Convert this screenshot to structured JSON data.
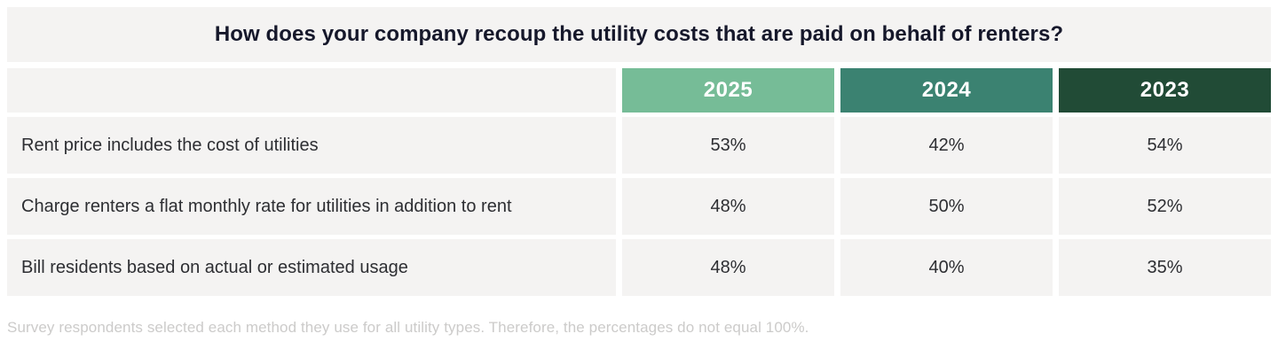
{
  "table": {
    "title": "How does your company recoup the utility costs that are paid on behalf of renters?",
    "columns": [
      {
        "label": "2025",
        "color": "#76bc97"
      },
      {
        "label": "2024",
        "color": "#3b8271"
      },
      {
        "label": "2023",
        "color": "#214b36"
      }
    ],
    "rows": [
      {
        "label": "Rent price includes the cost of utilities",
        "values": [
          "53%",
          "42%",
          "54%"
        ]
      },
      {
        "label": "Charge renters a flat monthly rate for utilities in addition to rent",
        "values": [
          "48%",
          "50%",
          "52%"
        ]
      },
      {
        "label": "Bill residents based on actual or estimated usage",
        "values": [
          "48%",
          "40%",
          "35%"
        ]
      }
    ],
    "footnote": "Survey respondents selected each method they use for all utility types. Therefore, the percentages do not equal 100%."
  },
  "chart_data": {
    "type": "table",
    "title": "How does your company recoup the utility costs that are paid on behalf of renters?",
    "categories": [
      "Rent price includes the cost of utilities",
      "Charge renters a flat monthly rate for utilities in addition to rent",
      "Bill residents based on actual or estimated usage"
    ],
    "series": [
      {
        "name": "2025",
        "values": [
          53,
          48,
          48
        ]
      },
      {
        "name": "2024",
        "values": [
          42,
          50,
          40
        ]
      },
      {
        "name": "2023",
        "values": [
          54,
          52,
          35
        ]
      }
    ],
    "value_unit": "%",
    "annotations": [
      "Survey respondents selected each method they use for all utility types. Therefore, the percentages do not equal 100%."
    ],
    "layout": {
      "header_colors": [
        "#76bc97",
        "#3b8271",
        "#214b36"
      ],
      "body_background": "#f4f3f2"
    }
  }
}
